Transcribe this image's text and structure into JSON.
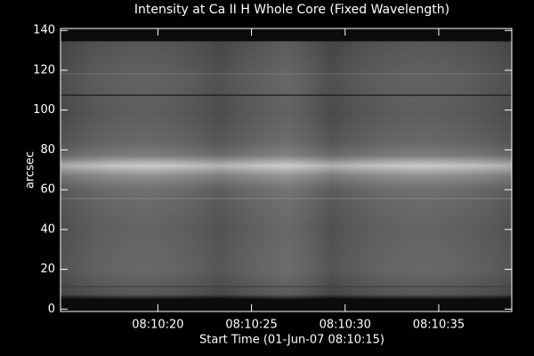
{
  "chart_data": {
    "type": "image",
    "title": "Intensity at Ca II H Whole Core (Fixed Wavelength)",
    "xlabel": "Start Time (01-Jun-07 08:10:15)",
    "ylabel": "arcsec",
    "xlim": [
      -0.2,
      23.9
    ],
    "xticks": [
      {
        "value": 5,
        "label": "08:10:20"
      },
      {
        "value": 10,
        "label": "08:10:25"
      },
      {
        "value": 15,
        "label": "08:10:30"
      },
      {
        "value": 20,
        "label": "08:10:35"
      }
    ],
    "ylim": [
      -1.2,
      141
    ],
    "yticks": [
      0,
      20,
      40,
      60,
      80,
      100,
      120,
      140
    ]
  }
}
